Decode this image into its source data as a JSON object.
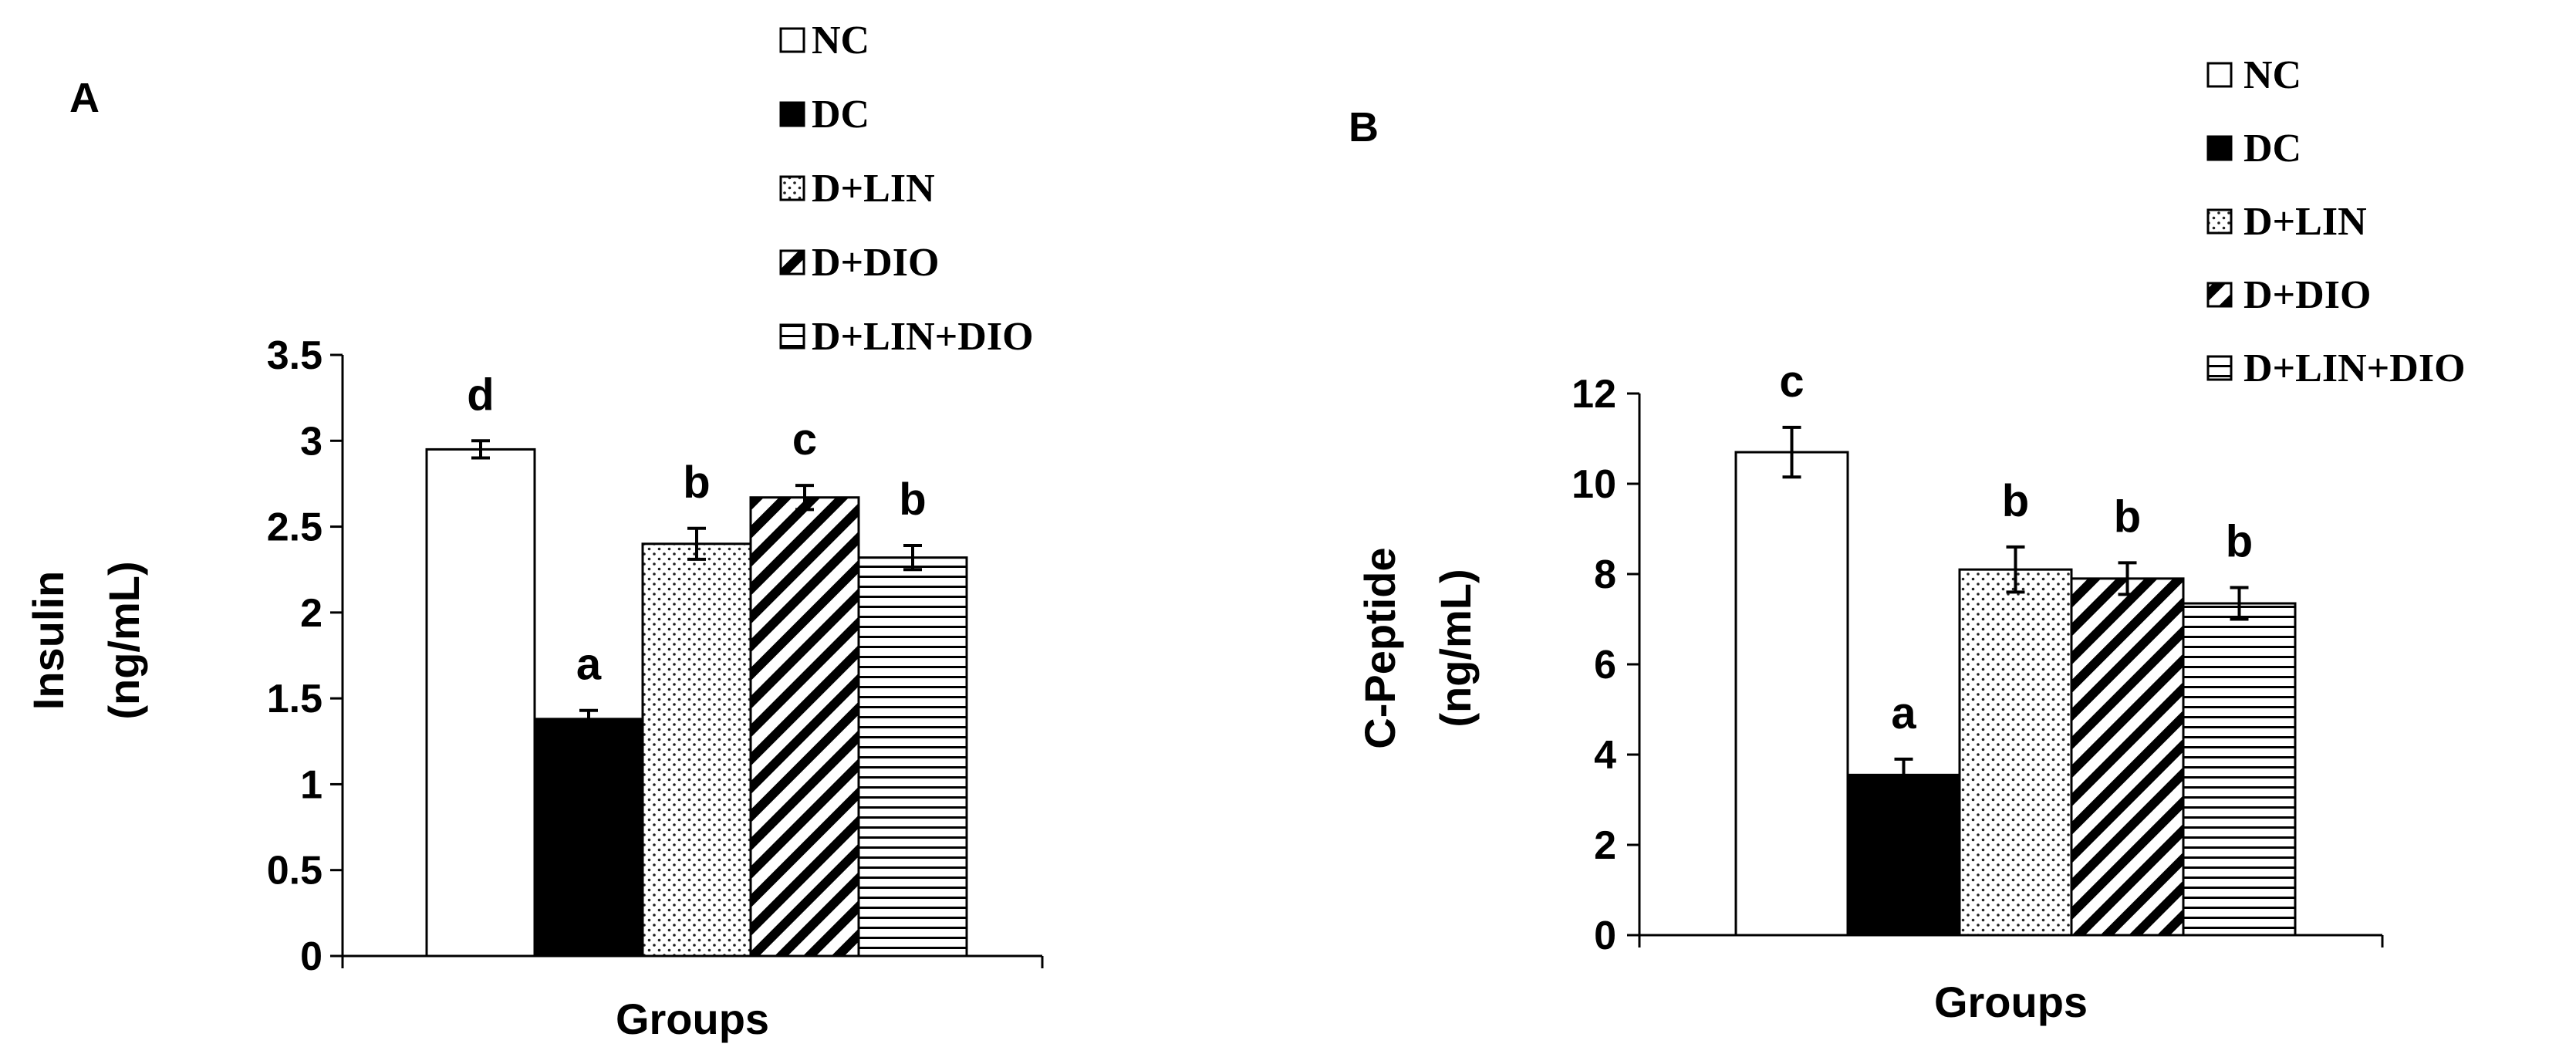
{
  "chart_data": [
    {
      "type": "bar",
      "panel_label": "A",
      "categories": [
        "NC",
        "DC",
        "D+LIN",
        "D+DIO",
        "D+LIN+DIO"
      ],
      "values": [
        2.95,
        1.38,
        2.4,
        2.67,
        2.32
      ],
      "errors": [
        0.05,
        0.05,
        0.09,
        0.07,
        0.07
      ],
      "significance_letters": [
        "d",
        "a",
        "b",
        "c",
        "b"
      ],
      "xlabel": "Groups",
      "ylabel_line1": "Insulin",
      "ylabel_line2": "(ng/mL)",
      "ylim": [
        0,
        3.5
      ],
      "yticks": [
        "0",
        "0.5",
        "1",
        "1.5",
        "2",
        "2.5",
        "3",
        "3.5"
      ],
      "legend": [
        "NC",
        "DC",
        "D+LIN",
        "D+DIO",
        "D+LIN+DIO"
      ],
      "legend_position": "top-right",
      "grid": false
    },
    {
      "type": "bar",
      "panel_label": "B",
      "categories": [
        "NC",
        "DC",
        "D+LIN",
        "D+DIO",
        "D+LIN+DIO"
      ],
      "values": [
        10.7,
        3.55,
        8.1,
        7.9,
        7.35
      ],
      "errors": [
        0.55,
        0.35,
        0.5,
        0.35,
        0.35
      ],
      "significance_letters": [
        "c",
        "a",
        "b",
        "b",
        "b"
      ],
      "xlabel": "Groups",
      "ylabel_line1": "C-Peptide",
      "ylabel_line2": "(ng/mL)",
      "ylim": [
        0,
        12
      ],
      "yticks": [
        "0",
        "2",
        "4",
        "6",
        "8",
        "10",
        "12"
      ],
      "legend": [
        "NC",
        "DC",
        "D+LIN",
        "D+DIO",
        "D+LIN+DIO"
      ],
      "legend_position": "top-right",
      "grid": false
    }
  ],
  "fills": [
    {
      "name": "NC",
      "fill": "white",
      "color": "#ffffff"
    },
    {
      "name": "DC",
      "fill": "solid",
      "color": "#000000"
    },
    {
      "name": "D+LIN",
      "fill": "dots",
      "color": "#000000"
    },
    {
      "name": "D+DIO",
      "fill": "diagonal-stripes",
      "color": "#000000"
    },
    {
      "name": "D+LIN+DIO",
      "fill": "horizontal-stripes",
      "color": "#000000"
    }
  ]
}
